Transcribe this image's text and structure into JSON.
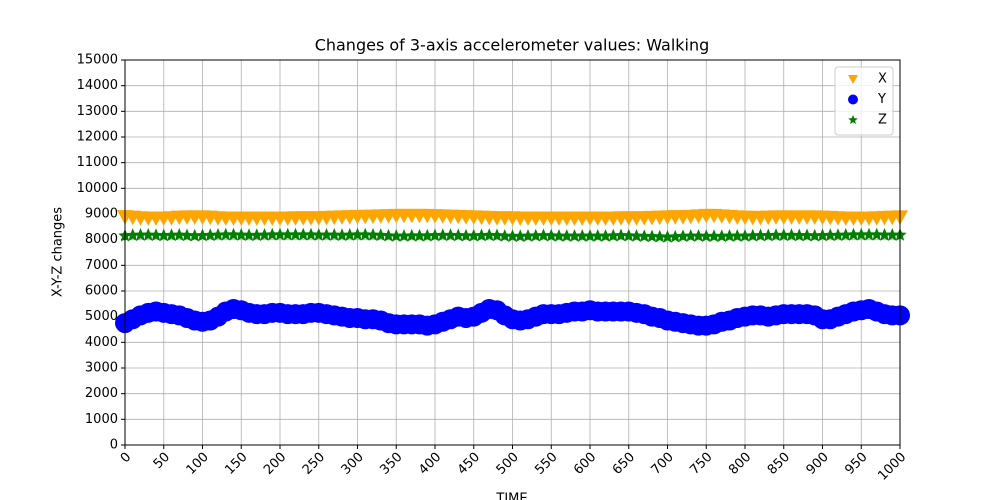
{
  "chart_data": {
    "type": "scatter",
    "title": "Changes of 3-axis accelerometer values: Walking",
    "x_label": "TIME",
    "y_label": "X-Y-Z changes",
    "xlim": [
      0,
      1000
    ],
    "ylim": [
      0,
      15000
    ],
    "xticks": [
      0,
      50,
      100,
      150,
      200,
      250,
      300,
      350,
      400,
      450,
      500,
      550,
      600,
      650,
      700,
      750,
      800,
      850,
      900,
      950,
      1000
    ],
    "yticks": [
      0,
      1000,
      2000,
      3000,
      4000,
      5000,
      6000,
      7000,
      8000,
      9000,
      10000,
      11000,
      12000,
      13000,
      14000,
      15000
    ],
    "grid": true,
    "legend": "upper right",
    "x": [
      0,
      10,
      20,
      30,
      40,
      50,
      60,
      70,
      80,
      90,
      100,
      110,
      120,
      130,
      140,
      150,
      160,
      170,
      180,
      190,
      200,
      210,
      220,
      230,
      240,
      250,
      260,
      270,
      280,
      290,
      300,
      310,
      320,
      330,
      340,
      350,
      360,
      370,
      380,
      390,
      400,
      410,
      420,
      430,
      440,
      450,
      460,
      470,
      480,
      490,
      500,
      510,
      520,
      530,
      540,
      550,
      560,
      570,
      580,
      590,
      600,
      610,
      620,
      630,
      640,
      650,
      660,
      670,
      680,
      690,
      700,
      710,
      720,
      730,
      740,
      750,
      760,
      770,
      780,
      790,
      800,
      810,
      820,
      830,
      840,
      850,
      860,
      870,
      880,
      890,
      900,
      910,
      920,
      930,
      940,
      950,
      960,
      970,
      980,
      990,
      1000
    ],
    "series": [
      {
        "name": "X",
        "color": "orange",
        "marker": "triangle-down",
        "values": [
          8900,
          8880,
          8860,
          8850,
          8850,
          8850,
          8860,
          8880,
          8890,
          8890,
          8890,
          8880,
          8860,
          8850,
          8850,
          8850,
          8850,
          8850,
          8850,
          8850,
          8850,
          8850,
          8860,
          8860,
          8860,
          8860,
          8870,
          8880,
          8890,
          8900,
          8910,
          8910,
          8920,
          8930,
          8940,
          8950,
          8950,
          8950,
          8950,
          8950,
          8940,
          8930,
          8920,
          8910,
          8900,
          8890,
          8880,
          8870,
          8860,
          8860,
          8860,
          8850,
          8850,
          8850,
          8850,
          8850,
          8850,
          8850,
          8850,
          8850,
          8850,
          8850,
          8850,
          8850,
          8860,
          8860,
          8860,
          8860,
          8870,
          8880,
          8890,
          8900,
          8900,
          8910,
          8930,
          8950,
          8950,
          8930,
          8910,
          8890,
          8880,
          8870,
          8870,
          8880,
          8890,
          8890,
          8890,
          8890,
          8890,
          8890,
          8880,
          8870,
          8860,
          8850,
          8850,
          8850,
          8850,
          8860,
          8870,
          8880,
          8890
        ]
      },
      {
        "name": "Y",
        "color": "blue",
        "marker": "circle",
        "values": [
          4750,
          4900,
          5050,
          5150,
          5200,
          5150,
          5100,
          5050,
          4950,
          4850,
          4800,
          4850,
          5000,
          5200,
          5300,
          5250,
          5150,
          5100,
          5100,
          5150,
          5150,
          5100,
          5100,
          5100,
          5150,
          5150,
          5100,
          5050,
          5000,
          4950,
          4950,
          4900,
          4900,
          4850,
          4750,
          4700,
          4700,
          4700,
          4700,
          4650,
          4700,
          4800,
          4900,
          5000,
          4950,
          5000,
          5150,
          5300,
          5250,
          5050,
          4900,
          4850,
          4900,
          5000,
          5100,
          5100,
          5100,
          5150,
          5200,
          5200,
          5250,
          5200,
          5200,
          5200,
          5200,
          5200,
          5150,
          5100,
          5000,
          4950,
          4850,
          4800,
          4750,
          4700,
          4650,
          4650,
          4700,
          4800,
          4850,
          4950,
          5000,
          5050,
          5050,
          5000,
          5050,
          5100,
          5100,
          5100,
          5100,
          5050,
          4900,
          4900,
          5000,
          5100,
          5200,
          5250,
          5300,
          5200,
          5100,
          5050,
          5050
        ]
      },
      {
        "name": "Z",
        "color": "green",
        "marker": "star",
        "values": [
          8150,
          8170,
          8180,
          8180,
          8170,
          8160,
          8170,
          8180,
          8160,
          8150,
          8160,
          8170,
          8180,
          8190,
          8190,
          8180,
          8170,
          8170,
          8180,
          8190,
          8190,
          8190,
          8190,
          8190,
          8190,
          8180,
          8180,
          8180,
          8170,
          8180,
          8190,
          8190,
          8180,
          8170,
          8150,
          8140,
          8140,
          8150,
          8150,
          8150,
          8160,
          8170,
          8170,
          8160,
          8150,
          8150,
          8160,
          8170,
          8160,
          8140,
          8130,
          8130,
          8140,
          8150,
          8160,
          8150,
          8140,
          8140,
          8140,
          8140,
          8140,
          8140,
          8140,
          8150,
          8160,
          8150,
          8140,
          8130,
          8120,
          8110,
          8100,
          8110,
          8130,
          8140,
          8140,
          8130,
          8130,
          8130,
          8140,
          8140,
          8140,
          8150,
          8160,
          8160,
          8170,
          8170,
          8170,
          8160,
          8160,
          8150,
          8160,
          8170,
          8170,
          8180,
          8190,
          8190,
          8190,
          8190,
          8180,
          8180,
          8180
        ]
      }
    ]
  }
}
